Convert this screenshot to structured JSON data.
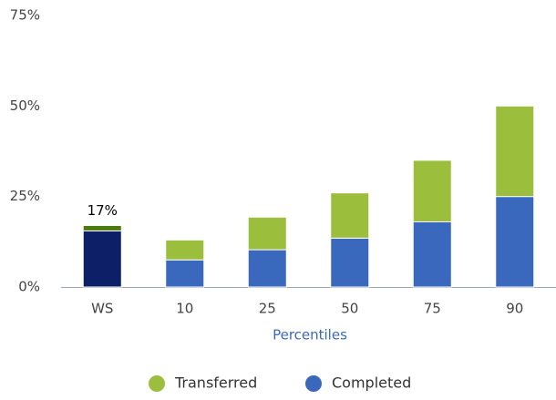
{
  "chart_data": {
    "type": "stacked_bar",
    "x_label": "Percentiles",
    "categories": [
      "WS",
      "10",
      "25",
      "50",
      "75",
      "90"
    ],
    "series": [
      {
        "name": "Completed",
        "color": "#3a68bd",
        "colors": [
          "#0d1f66",
          "#3a68bd",
          "#3a68bd",
          "#3a68bd",
          "#3a68bd",
          "#3a68bd"
        ],
        "values": [
          15.5,
          7.5,
          10.3,
          13.5,
          18,
          25
        ]
      },
      {
        "name": "Transferred",
        "color": "#9bbf3c",
        "colors": [
          "#4c7a12",
          "#9bbf3c",
          "#9bbf3c",
          "#9bbf3c",
          "#9bbf3c",
          "#9bbf3c"
        ],
        "values": [
          1.5,
          5.5,
          9,
          12.5,
          17,
          25
        ]
      }
    ],
    "annotations": [
      {
        "text": "17%",
        "value": 17,
        "category": "WS"
      }
    ],
    "ylim": [
      0,
      75
    ],
    "yticks": [
      {
        "value": 0,
        "label": "0%"
      },
      {
        "value": 25,
        "label": "25%"
      },
      {
        "value": 50,
        "label": "50%"
      },
      {
        "value": 75,
        "label": "75%"
      }
    ],
    "grid": false,
    "legend": "bottom"
  }
}
